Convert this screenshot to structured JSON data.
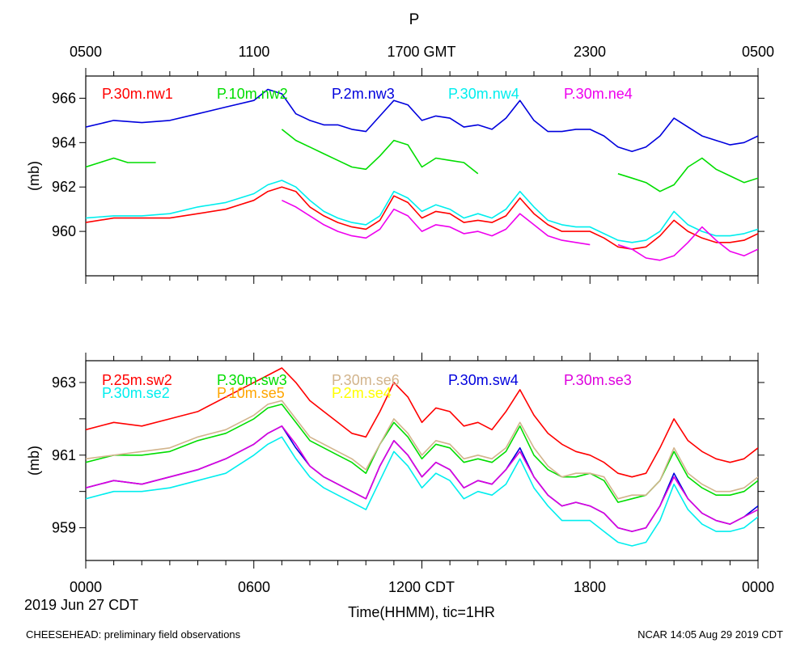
{
  "figure": {
    "title": "P",
    "top_axis": {
      "ticks": [
        "0500",
        "1100",
        "1700 GMT",
        "2300",
        "0500"
      ]
    },
    "bottom_axis": {
      "ticks": [
        "0000",
        "0600",
        "1200 CDT",
        "1800",
        "0000"
      ],
      "date_label": "2019 Jun 27 CDT",
      "xlabel": "Time(HHMM), tic=1HR"
    },
    "footer_left": "CHEESEHEAD: preliminary field observations",
    "footer_right": "NCAR 14:05 Aug 29 2019 CDT"
  },
  "chart_data": [
    {
      "type": "line",
      "panel": "top",
      "ylabel": "(mb)",
      "ylim": [
        958,
        967
      ],
      "yticks": [
        960,
        962,
        964,
        966
      ],
      "ytick_labels": [
        "960",
        "962",
        "964",
        "966"
      ],
      "xlim": [
        0,
        24
      ],
      "x_unit": "hours CDT",
      "series": [
        {
          "name": "P.30m.nw1",
          "color": "#ff0000",
          "x": [
            0,
            1,
            2,
            3,
            4,
            5,
            6,
            6.5,
            7,
            7.5,
            8,
            8.5,
            9,
            9.5,
            10,
            10.5,
            11,
            11.5,
            12,
            12.5,
            13,
            13.5,
            14,
            14.5,
            15,
            15.5,
            16,
            16.5,
            17,
            17.5,
            18,
            18.5,
            19,
            19.5,
            20,
            20.5,
            21,
            21.5,
            22,
            22.5,
            23,
            23.5,
            24
          ],
          "y": [
            960.4,
            960.6,
            960.6,
            960.6,
            960.8,
            961.0,
            961.4,
            961.8,
            962.0,
            961.8,
            961.1,
            960.7,
            960.4,
            960.2,
            960.1,
            960.5,
            961.6,
            961.3,
            960.6,
            960.9,
            960.8,
            960.4,
            960.5,
            960.4,
            960.7,
            961.5,
            960.8,
            960.3,
            960.0,
            960.0,
            960.0,
            959.7,
            959.3,
            959.2,
            959.3,
            959.8,
            960.5,
            960.0,
            959.7,
            959.5,
            959.5,
            959.6,
            959.9
          ]
        },
        {
          "name": "P.10m.nw2",
          "color": "#00dd00",
          "x": [
            0,
            0.5,
            1,
            1.5,
            2,
            2.5
          ],
          "y": [
            962.9,
            963.1,
            963.3,
            963.1,
            963.1,
            963.1
          ]
        },
        {
          "name": "P.10m.nw2",
          "color": "#00dd00",
          "x": [
            7,
            7.5,
            8,
            8.5,
            9,
            9.5,
            10,
            10.5,
            11,
            11.5,
            12,
            12.5,
            13,
            13.5,
            14
          ],
          "y": [
            964.6,
            964.1,
            963.8,
            963.5,
            963.2,
            962.9,
            962.8,
            963.4,
            964.1,
            963.9,
            962.9,
            963.3,
            963.2,
            963.1,
            962.6
          ]
        },
        {
          "name": "P.10m.nw2",
          "color": "#00dd00",
          "x": [
            19,
            19.5,
            20,
            20.5,
            21,
            21.5,
            22,
            22.5,
            23,
            23.5,
            24
          ],
          "y": [
            962.6,
            962.4,
            962.2,
            961.8,
            962.1,
            962.9,
            963.3,
            962.8,
            962.5,
            962.2,
            962.4
          ]
        },
        {
          "name": "P.2m.nw3",
          "color": "#0000dd",
          "x": [
            0,
            1,
            2,
            3,
            4,
            5,
            6,
            6.5,
            7,
            7.5,
            8,
            8.5,
            9,
            9.5,
            10,
            10.5,
            11,
            11.5,
            12,
            12.5,
            13,
            13.5,
            14,
            14.5,
            15,
            15.5,
            16,
            16.5,
            17,
            17.5,
            18,
            18.5,
            19,
            19.5,
            20,
            20.5,
            21,
            21.5,
            22,
            22.5,
            23,
            23.5,
            24
          ],
          "y": [
            964.7,
            965.0,
            964.9,
            965.0,
            965.3,
            965.6,
            965.9,
            966.4,
            966.2,
            965.3,
            965.0,
            964.8,
            964.8,
            964.6,
            964.5,
            965.2,
            965.9,
            965.7,
            965.0,
            965.2,
            965.1,
            964.7,
            964.8,
            964.6,
            965.1,
            965.9,
            965.0,
            964.5,
            964.5,
            964.6,
            964.6,
            964.3,
            963.8,
            963.6,
            963.8,
            964.3,
            965.1,
            964.7,
            964.3,
            964.1,
            963.9,
            964.0,
            964.3
          ]
        },
        {
          "name": "P.30m.nw4",
          "color": "#00eeee",
          "x": [
            0,
            1,
            2,
            3,
            4,
            5,
            6,
            6.5,
            7,
            7.5,
            8,
            8.5,
            9,
            9.5,
            10,
            10.5,
            11,
            11.5,
            12,
            12.5,
            13,
            13.5,
            14,
            14.5,
            15,
            15.5,
            16,
            16.5,
            17,
            17.5,
            18,
            18.5,
            19,
            19.5,
            20,
            20.5,
            21,
            21.5,
            22,
            22.5,
            23,
            23.5,
            24
          ],
          "y": [
            960.6,
            960.7,
            960.7,
            960.8,
            961.1,
            961.3,
            961.7,
            962.1,
            962.3,
            962.0,
            961.4,
            960.9,
            960.6,
            960.4,
            960.3,
            960.7,
            961.8,
            961.5,
            960.9,
            961.2,
            961.0,
            960.6,
            960.8,
            960.6,
            961.0,
            961.8,
            961.1,
            960.5,
            960.3,
            960.2,
            960.2,
            959.9,
            959.6,
            959.5,
            959.6,
            960.0,
            960.9,
            960.3,
            960.0,
            959.8,
            959.8,
            959.9,
            960.1
          ]
        },
        {
          "name": "P.30m.ne4",
          "color": "#ee00ee",
          "x": [
            7,
            7.5,
            8,
            8.5,
            9,
            9.5,
            10,
            10.5,
            11,
            11.5,
            12,
            12.5,
            13,
            13.5,
            14,
            14.5,
            15,
            15.5,
            16,
            16.5,
            17,
            17.5,
            18
          ],
          "y": [
            961.4,
            961.1,
            960.7,
            960.3,
            960.0,
            959.8,
            959.7,
            960.1,
            961.0,
            960.7,
            960.0,
            960.3,
            960.2,
            959.9,
            960.0,
            959.8,
            960.1,
            960.8,
            960.3,
            959.8,
            959.6,
            959.5,
            959.4
          ]
        },
        {
          "name": "P.30m.ne4",
          "color": "#ee00ee",
          "x": [
            19,
            19.5,
            20,
            20.5,
            21,
            21.5,
            22,
            22.5,
            23,
            23.5,
            24
          ],
          "y": [
            959.4,
            959.2,
            958.8,
            958.7,
            958.9,
            959.5,
            960.2,
            959.6,
            959.1,
            958.9,
            959.2
          ]
        }
      ]
    },
    {
      "type": "line",
      "panel": "bottom",
      "ylabel": "(mb)",
      "ylim": [
        958.1,
        963.6
      ],
      "yticks": [
        959,
        960,
        961,
        962,
        963
      ],
      "ytick_labels": [
        "959",
        "",
        "961",
        "",
        "963"
      ],
      "xlim": [
        0,
        24
      ],
      "x_unit": "hours CDT",
      "series": [
        {
          "name": "P.25m.sw2",
          "color": "#ff0000",
          "x": [
            0,
            1,
            2,
            3,
            4,
            5,
            6,
            6.5,
            7,
            7.5,
            8,
            8.5,
            9,
            9.5,
            10,
            10.5,
            11,
            11.5,
            12,
            12.5,
            13,
            13.5,
            14,
            14.5,
            15,
            15.5,
            16,
            16.5,
            17,
            17.5,
            18,
            18.5,
            19,
            19.5,
            20,
            20.5,
            21,
            21.5,
            22,
            22.5,
            23,
            23.5,
            24
          ],
          "y": [
            961.7,
            961.9,
            961.8,
            962.0,
            962.2,
            962.6,
            963.0,
            963.2,
            963.4,
            963.0,
            962.5,
            962.2,
            961.9,
            961.6,
            961.5,
            962.2,
            963.0,
            962.6,
            961.9,
            962.3,
            962.2,
            961.8,
            961.9,
            961.7,
            962.2,
            962.8,
            962.1,
            961.6,
            961.3,
            961.1,
            961.0,
            960.8,
            960.5,
            960.4,
            960.5,
            961.2,
            962.0,
            961.4,
            961.1,
            960.9,
            960.8,
            960.9,
            961.2
          ]
        },
        {
          "name": "P.30m.sw3",
          "color": "#00dd00",
          "x": [
            0,
            1,
            2,
            3,
            4,
            5,
            6,
            6.5,
            7,
            7.5,
            8,
            8.5,
            9,
            9.5,
            10,
            10.5,
            11,
            11.5,
            12,
            12.5,
            13,
            13.5,
            14,
            14.5,
            15,
            15.5,
            16,
            16.5,
            17,
            17.5,
            18,
            18.5,
            19,
            19.5,
            20,
            20.5,
            21,
            21.5,
            22,
            22.5,
            23,
            23.5,
            24
          ],
          "y": [
            960.8,
            961.0,
            961.0,
            961.1,
            961.4,
            961.6,
            962.0,
            962.3,
            962.4,
            961.9,
            961.4,
            961.2,
            961.0,
            960.8,
            960.5,
            961.3,
            961.9,
            961.5,
            960.9,
            961.3,
            961.2,
            960.8,
            960.9,
            960.8,
            961.1,
            961.8,
            961.0,
            960.6,
            960.4,
            960.4,
            960.5,
            960.3,
            959.7,
            959.8,
            959.9,
            960.3,
            961.1,
            960.4,
            960.1,
            959.9,
            959.9,
            960.0,
            960.3
          ]
        },
        {
          "name": "P.30m.se6",
          "color": "#d2b48c",
          "x": [
            0,
            1,
            2,
            3,
            4,
            5,
            6,
            6.5,
            7,
            7.5,
            8,
            8.5,
            9,
            9.5,
            10,
            10.5,
            11,
            11.5,
            12,
            12.5,
            13,
            13.5,
            14,
            14.5,
            15,
            15.5,
            16,
            16.5,
            17,
            17.5,
            18,
            18.5,
            19,
            19.5,
            20,
            20.5,
            21,
            21.5,
            22,
            22.5,
            23,
            23.5,
            24
          ],
          "y": [
            960.9,
            961.0,
            961.1,
            961.2,
            961.5,
            961.7,
            962.1,
            962.4,
            962.5,
            962.0,
            961.5,
            961.3,
            961.1,
            960.9,
            960.6,
            961.3,
            962.0,
            961.6,
            961.0,
            961.4,
            961.3,
            960.9,
            961.0,
            960.9,
            961.2,
            961.9,
            961.2,
            960.7,
            960.4,
            960.5,
            960.5,
            960.4,
            959.8,
            959.9,
            959.9,
            960.3,
            961.2,
            960.5,
            960.2,
            960.0,
            960.0,
            960.1,
            960.4
          ]
        },
        {
          "name": "P.30m.sw4",
          "color": "#0000dd",
          "x": [
            0,
            1,
            2,
            3,
            4,
            5,
            6,
            6.5,
            7,
            7.5,
            8,
            8.5,
            9,
            9.5,
            10,
            10.5,
            11,
            11.5,
            12,
            12.5,
            13,
            13.5,
            14,
            14.5,
            15,
            15.5,
            16,
            16.5,
            17,
            17.5,
            18,
            18.5,
            19,
            19.5,
            20,
            20.5,
            21,
            21.5,
            22,
            22.5,
            23,
            23.5,
            24
          ],
          "y": [
            960.1,
            960.3,
            960.2,
            960.4,
            960.6,
            960.9,
            961.3,
            961.6,
            961.8,
            961.2,
            960.7,
            960.4,
            960.2,
            960.0,
            959.8,
            960.7,
            961.4,
            961.0,
            960.4,
            960.8,
            960.6,
            960.1,
            960.3,
            960.2,
            960.6,
            961.2,
            960.4,
            959.9,
            959.6,
            959.7,
            959.6,
            959.4,
            959.0,
            958.9,
            959.0,
            959.6,
            960.5,
            959.8,
            959.4,
            959.2,
            959.1,
            959.3,
            959.6
          ]
        },
        {
          "name": "P.30m.se3",
          "color": "#dd00dd",
          "x": [
            0,
            1,
            2,
            3,
            4,
            5,
            6,
            6.5,
            7,
            7.5,
            8,
            8.5,
            9,
            9.5,
            10,
            10.5,
            11,
            11.5,
            12,
            12.5,
            13,
            13.5,
            14,
            14.5,
            15,
            15.5,
            16,
            16.5,
            17,
            17.5,
            18,
            18.5,
            19,
            19.5,
            20,
            20.5,
            21,
            21.5,
            22,
            22.5,
            23,
            23.5,
            24
          ],
          "y": [
            960.1,
            960.3,
            960.2,
            960.4,
            960.6,
            960.9,
            961.3,
            961.6,
            961.8,
            961.3,
            960.7,
            960.4,
            960.2,
            960.0,
            959.8,
            960.7,
            961.4,
            961.0,
            960.4,
            960.8,
            960.6,
            960.1,
            960.3,
            960.2,
            960.6,
            961.1,
            960.4,
            959.9,
            959.6,
            959.7,
            959.6,
            959.4,
            959.0,
            958.9,
            959.0,
            959.6,
            960.4,
            959.8,
            959.4,
            959.2,
            959.1,
            959.3,
            959.5
          ]
        },
        {
          "name": "P.30m.se2",
          "color": "#00eeee",
          "x": [
            0,
            1,
            2,
            3,
            4,
            5,
            6,
            6.5,
            7,
            7.5,
            8,
            8.5,
            9,
            9.5,
            10,
            10.5,
            11,
            11.5,
            12,
            12.5,
            13,
            13.5,
            14,
            14.5,
            15,
            15.5,
            16,
            16.5,
            17,
            17.5,
            18,
            18.5,
            19,
            19.5,
            20,
            20.5,
            21,
            21.5,
            22,
            22.5,
            23,
            23.5,
            24
          ],
          "y": [
            959.8,
            960.0,
            960.0,
            960.1,
            960.3,
            960.5,
            961.0,
            961.3,
            961.5,
            960.9,
            960.4,
            960.1,
            959.9,
            959.7,
            959.5,
            960.3,
            961.1,
            960.7,
            960.1,
            960.5,
            960.3,
            959.8,
            960.0,
            959.9,
            960.2,
            960.9,
            960.1,
            959.6,
            959.2,
            959.2,
            959.2,
            958.9,
            958.6,
            958.5,
            958.6,
            959.2,
            960.2,
            959.5,
            959.1,
            958.9,
            958.9,
            959.0,
            959.3
          ]
        },
        {
          "name": "P.10m.se5",
          "color": "#ffa500",
          "x": [],
          "y": []
        },
        {
          "name": "P.2m.se4",
          "color": "#ffff00",
          "x": [],
          "y": []
        }
      ]
    }
  ]
}
